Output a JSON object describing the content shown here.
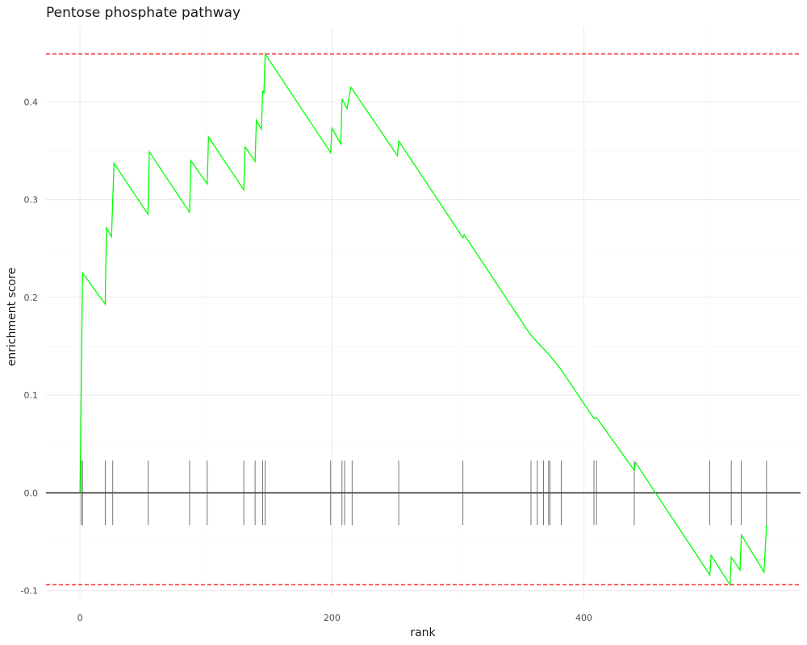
{
  "chart_data": {
    "type": "line",
    "title": "Pentose phosphate pathway",
    "xlabel": "rank",
    "ylabel": "enrichment score",
    "xlim": [
      -27,
      572
    ],
    "ylim": [
      -0.107,
      0.477
    ],
    "x_ticks": [
      0,
      200,
      400
    ],
    "y_ticks": [
      -0.1,
      0.0,
      0.1,
      0.2,
      0.3,
      0.4
    ],
    "y_tick_labels": [
      "-0.1",
      "0.0",
      "0.1",
      "0.2",
      "0.3",
      "0.4"
    ],
    "grid": true,
    "series": [
      {
        "color": "#00ff00",
        "points": [
          [
            0,
            0
          ],
          [
            2,
            0.225
          ],
          [
            20,
            0.193
          ],
          [
            21,
            0.271
          ],
          [
            25,
            0.262
          ],
          [
            27,
            0.337
          ],
          [
            54,
            0.285
          ],
          [
            55,
            0.349
          ],
          [
            87,
            0.287
          ],
          [
            88,
            0.34
          ],
          [
            101,
            0.316
          ],
          [
            102,
            0.364
          ],
          [
            130,
            0.31
          ],
          [
            131,
            0.354
          ],
          [
            139,
            0.339
          ],
          [
            140,
            0.381
          ],
          [
            144,
            0.372
          ],
          [
            145,
            0.411
          ],
          [
            146,
            0.409
          ],
          [
            147,
            0.449
          ],
          [
            199,
            0.348
          ],
          [
            200,
            0.373
          ],
          [
            207,
            0.357
          ],
          [
            208,
            0.403
          ],
          [
            212,
            0.393
          ],
          [
            215,
            0.415
          ],
          [
            252,
            0.345
          ],
          [
            253,
            0.36
          ],
          [
            304,
            0.261
          ],
          [
            305,
            0.264
          ],
          [
            357,
            0.163
          ],
          [
            363,
            0.154
          ],
          [
            372,
            0.142
          ],
          [
            382,
            0.126
          ],
          [
            408,
            0.076
          ],
          [
            410,
            0.077
          ],
          [
            440,
            0.023
          ],
          [
            441,
            0.031
          ],
          [
            500,
            -0.084
          ],
          [
            501,
            -0.064
          ],
          [
            516,
            -0.094
          ],
          [
            517,
            -0.066
          ],
          [
            524,
            -0.079
          ],
          [
            525,
            -0.043
          ],
          [
            543,
            -0.081
          ],
          [
            545,
            -0.033
          ]
        ]
      }
    ],
    "gene_ranks": [
      1,
      2,
      20,
      26,
      54,
      87,
      101,
      130,
      139,
      145,
      147,
      199,
      208,
      210,
      216,
      253,
      304,
      358,
      363,
      368,
      372,
      373,
      382,
      408,
      410,
      440,
      500,
      517,
      525,
      545
    ],
    "hlines": [
      {
        "y": 0.449,
        "color": "#ff0000",
        "style": "dashed"
      },
      {
        "y": -0.094,
        "color": "#ff0000",
        "style": "dashed"
      },
      {
        "y": 0,
        "color": "#000000",
        "style": "solid"
      }
    ]
  }
}
